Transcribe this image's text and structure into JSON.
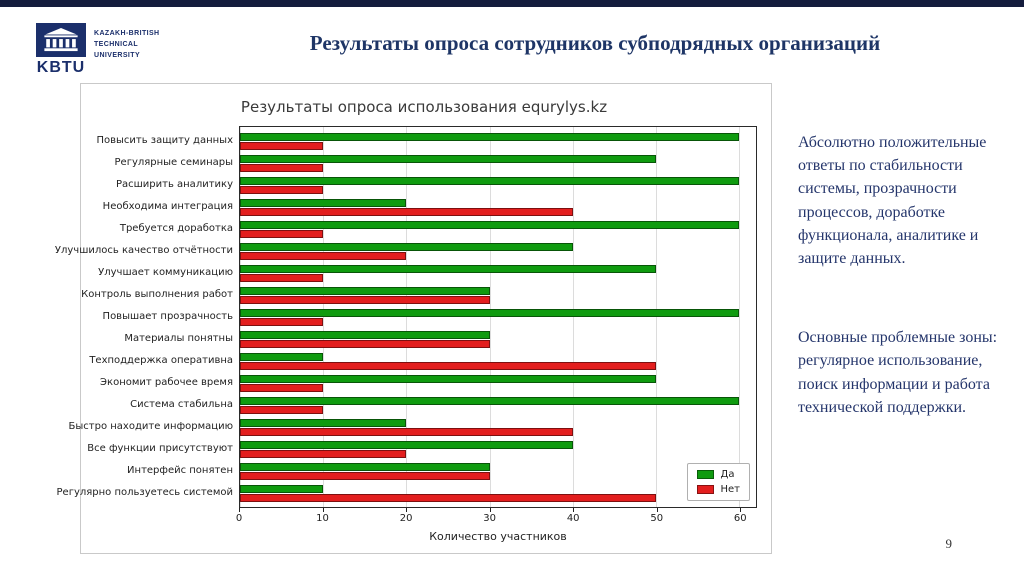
{
  "slide": {
    "title": "Результаты опроса сотрудников субподрядных организаций",
    "page_number": "9",
    "text_color": "#24356b",
    "logo": {
      "acronym": "KBTU",
      "university_lines": [
        "KAZAKH-BRITISH",
        "TECHNICAL",
        "UNIVERSITY"
      ],
      "icon": "building-columns-icon",
      "color": "#1b2f6b"
    },
    "notes": [
      "Абсолютно положительные ответы по стабильности системы, прозрачности процессов, доработке функционала, аналитике и защите данных.",
      "Основные проблемные зоны: регулярное использование, поиск информации и работа технической поддержки."
    ]
  },
  "chart_data": {
    "type": "bar",
    "orientation": "horizontal",
    "title": "Результаты опроса использования equrylys.kz",
    "xlabel": "Количество участников",
    "xlim": [
      0,
      62
    ],
    "xticks": [
      0,
      10,
      20,
      30,
      40,
      50,
      60
    ],
    "grid": true,
    "legend_position": "lower right",
    "categories": [
      "Повысить защиту данных",
      "Регулярные семинары",
      "Расширить аналитику",
      "Необходима интеграция",
      "Требуется доработка",
      "Улучшилось качество отчётности",
      "Улучшает коммуникацию",
      "Контроль выполнения работ",
      "Повышает прозрачность",
      "Материалы понятны",
      "Техподдержка оперативна",
      "Экономит рабочее время",
      "Система стабильна",
      "Быстро находите информацию",
      "Все функции присутствуют",
      "Интерфейс понятен",
      "Регулярно пользуетесь системой"
    ],
    "series": [
      {
        "name": "Да",
        "color": "#0f9b0f",
        "values": [
          60,
          50,
          60,
          20,
          60,
          40,
          50,
          30,
          60,
          30,
          10,
          50,
          60,
          20,
          40,
          30,
          10
        ]
      },
      {
        "name": "Нет",
        "color": "#e31e1e",
        "values": [
          10,
          10,
          10,
          40,
          10,
          20,
          10,
          30,
          10,
          30,
          50,
          10,
          10,
          40,
          20,
          30,
          50
        ]
      }
    ]
  }
}
